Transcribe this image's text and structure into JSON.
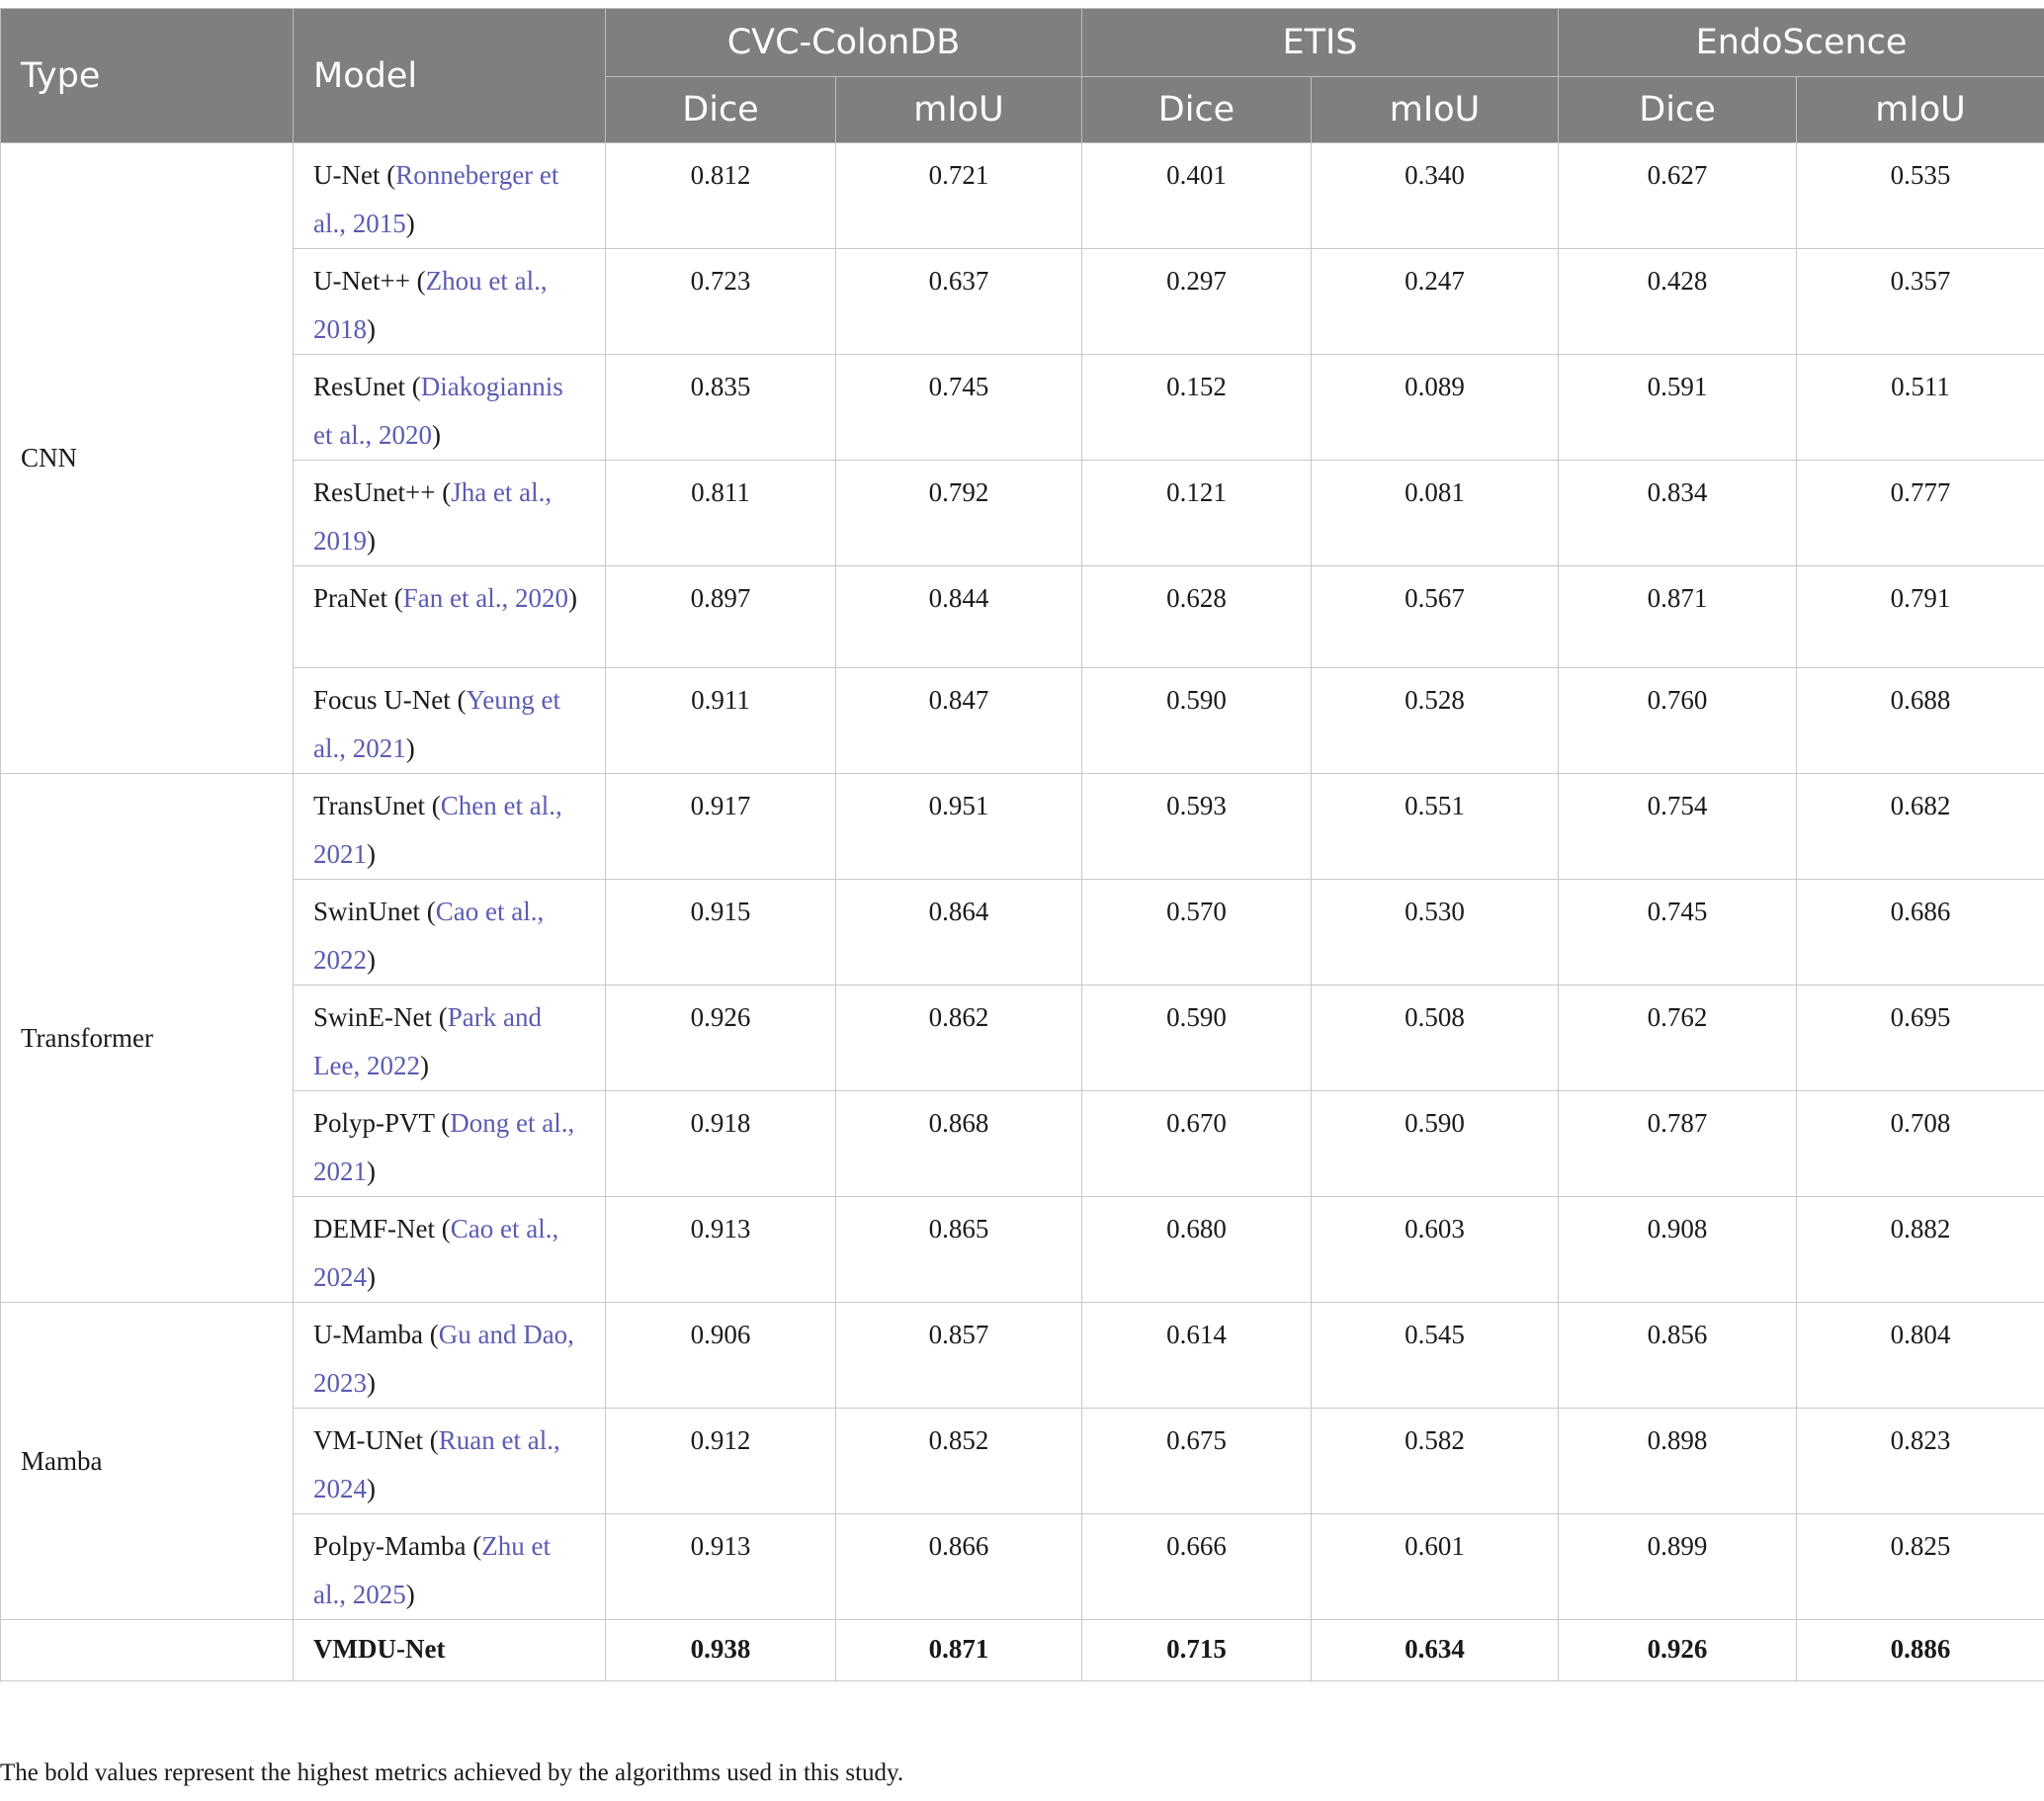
{
  "table": {
    "headers": {
      "type": "Type",
      "model": "Model",
      "groups": [
        "CVC-ColonDB",
        "ETIS",
        "EndoScence"
      ],
      "metrics": [
        "Dice",
        "mIoU",
        "Dice",
        "mIoU",
        "Dice",
        "mIoU"
      ]
    },
    "types": [
      "CNN",
      "Transformer",
      "Mamba"
    ],
    "rows": [
      {
        "name": "U-Net (",
        "cite": "Ronneberger et al., 2015",
        "close": ")",
        "values": [
          "0.812",
          "0.721",
          "0.401",
          "0.340",
          "0.627",
          "0.535"
        ]
      },
      {
        "name": "U-Net++ (",
        "cite": "Zhou et al., 2018",
        "close": ")",
        "values": [
          "0.723",
          "0.637",
          "0.297",
          "0.247",
          "0.428",
          "0.357"
        ]
      },
      {
        "name": "ResUnet (",
        "cite": "Diakogiannis et al., 2020",
        "close": ")",
        "values": [
          "0.835",
          "0.745",
          "0.152",
          "0.089",
          "0.591",
          "0.511"
        ]
      },
      {
        "name": "ResUnet++ (",
        "cite": "Jha et al., 2019",
        "close": ")",
        "values": [
          "0.811",
          "0.792",
          "0.121",
          "0.081",
          "0.834",
          "0.777"
        ]
      },
      {
        "name": "PraNet (",
        "cite": "Fan et al., 2020",
        "close": ")",
        "values": [
          "0.897",
          "0.844",
          "0.628",
          "0.567",
          "0.871",
          "0.791"
        ]
      },
      {
        "name": "Focus U-Net (",
        "cite": "Yeung et al., 2021",
        "close": ")",
        "values": [
          "0.911",
          "0.847",
          "0.590",
          "0.528",
          "0.760",
          "0.688"
        ]
      },
      {
        "name": "TransUnet (",
        "cite": "Chen et al., 2021",
        "close": ")",
        "values": [
          "0.917",
          "0.951",
          "0.593",
          "0.551",
          "0.754",
          "0.682"
        ]
      },
      {
        "name": "SwinUnet (",
        "cite": "Cao et al., 2022",
        "close": ")",
        "values": [
          "0.915",
          "0.864",
          "0.570",
          "0.530",
          "0.745",
          "0.686"
        ]
      },
      {
        "name": "SwinE-Net (",
        "cite": "Park and Lee, 2022",
        "close": ")",
        "values": [
          "0.926",
          "0.862",
          "0.590",
          "0.508",
          "0.762",
          "0.695"
        ]
      },
      {
        "name": "Polyp-PVT (",
        "cite": "Dong et al., 2021",
        "close": ")",
        "values": [
          "0.918",
          "0.868",
          "0.670",
          "0.590",
          "0.787",
          "0.708"
        ]
      },
      {
        "name": "DEMF-Net (",
        "cite": "Cao et al., 2024",
        "close": ")",
        "values": [
          "0.913",
          "0.865",
          "0.680",
          "0.603",
          "0.908",
          "0.882"
        ]
      },
      {
        "name": "U-Mamba (",
        "cite": "Gu and Dao, 2023",
        "close": ")",
        "values": [
          "0.906",
          "0.857",
          "0.614",
          "0.545",
          "0.856",
          "0.804"
        ]
      },
      {
        "name": "VM-UNet (",
        "cite": "Ruan et al., 2024",
        "close": ")",
        "values": [
          "0.912",
          "0.852",
          "0.675",
          "0.582",
          "0.898",
          "0.823"
        ]
      },
      {
        "name": "Polpy-Mamba (",
        "cite": "Zhu et al., 2025",
        "close": ")",
        "values": [
          "0.913",
          "0.866",
          "0.666",
          "0.601",
          "0.899",
          "0.825"
        ]
      }
    ],
    "ours": {
      "name": "VMDU-Net",
      "values": [
        "0.938",
        "0.871",
        "0.715",
        "0.634",
        "0.926",
        "0.886"
      ]
    }
  },
  "footnote": "The bold values represent the highest metrics achieved by the algorithms used in this study.",
  "colors": {
    "header_bg": "#7f7f7f",
    "citation": "#5b5bb3"
  }
}
